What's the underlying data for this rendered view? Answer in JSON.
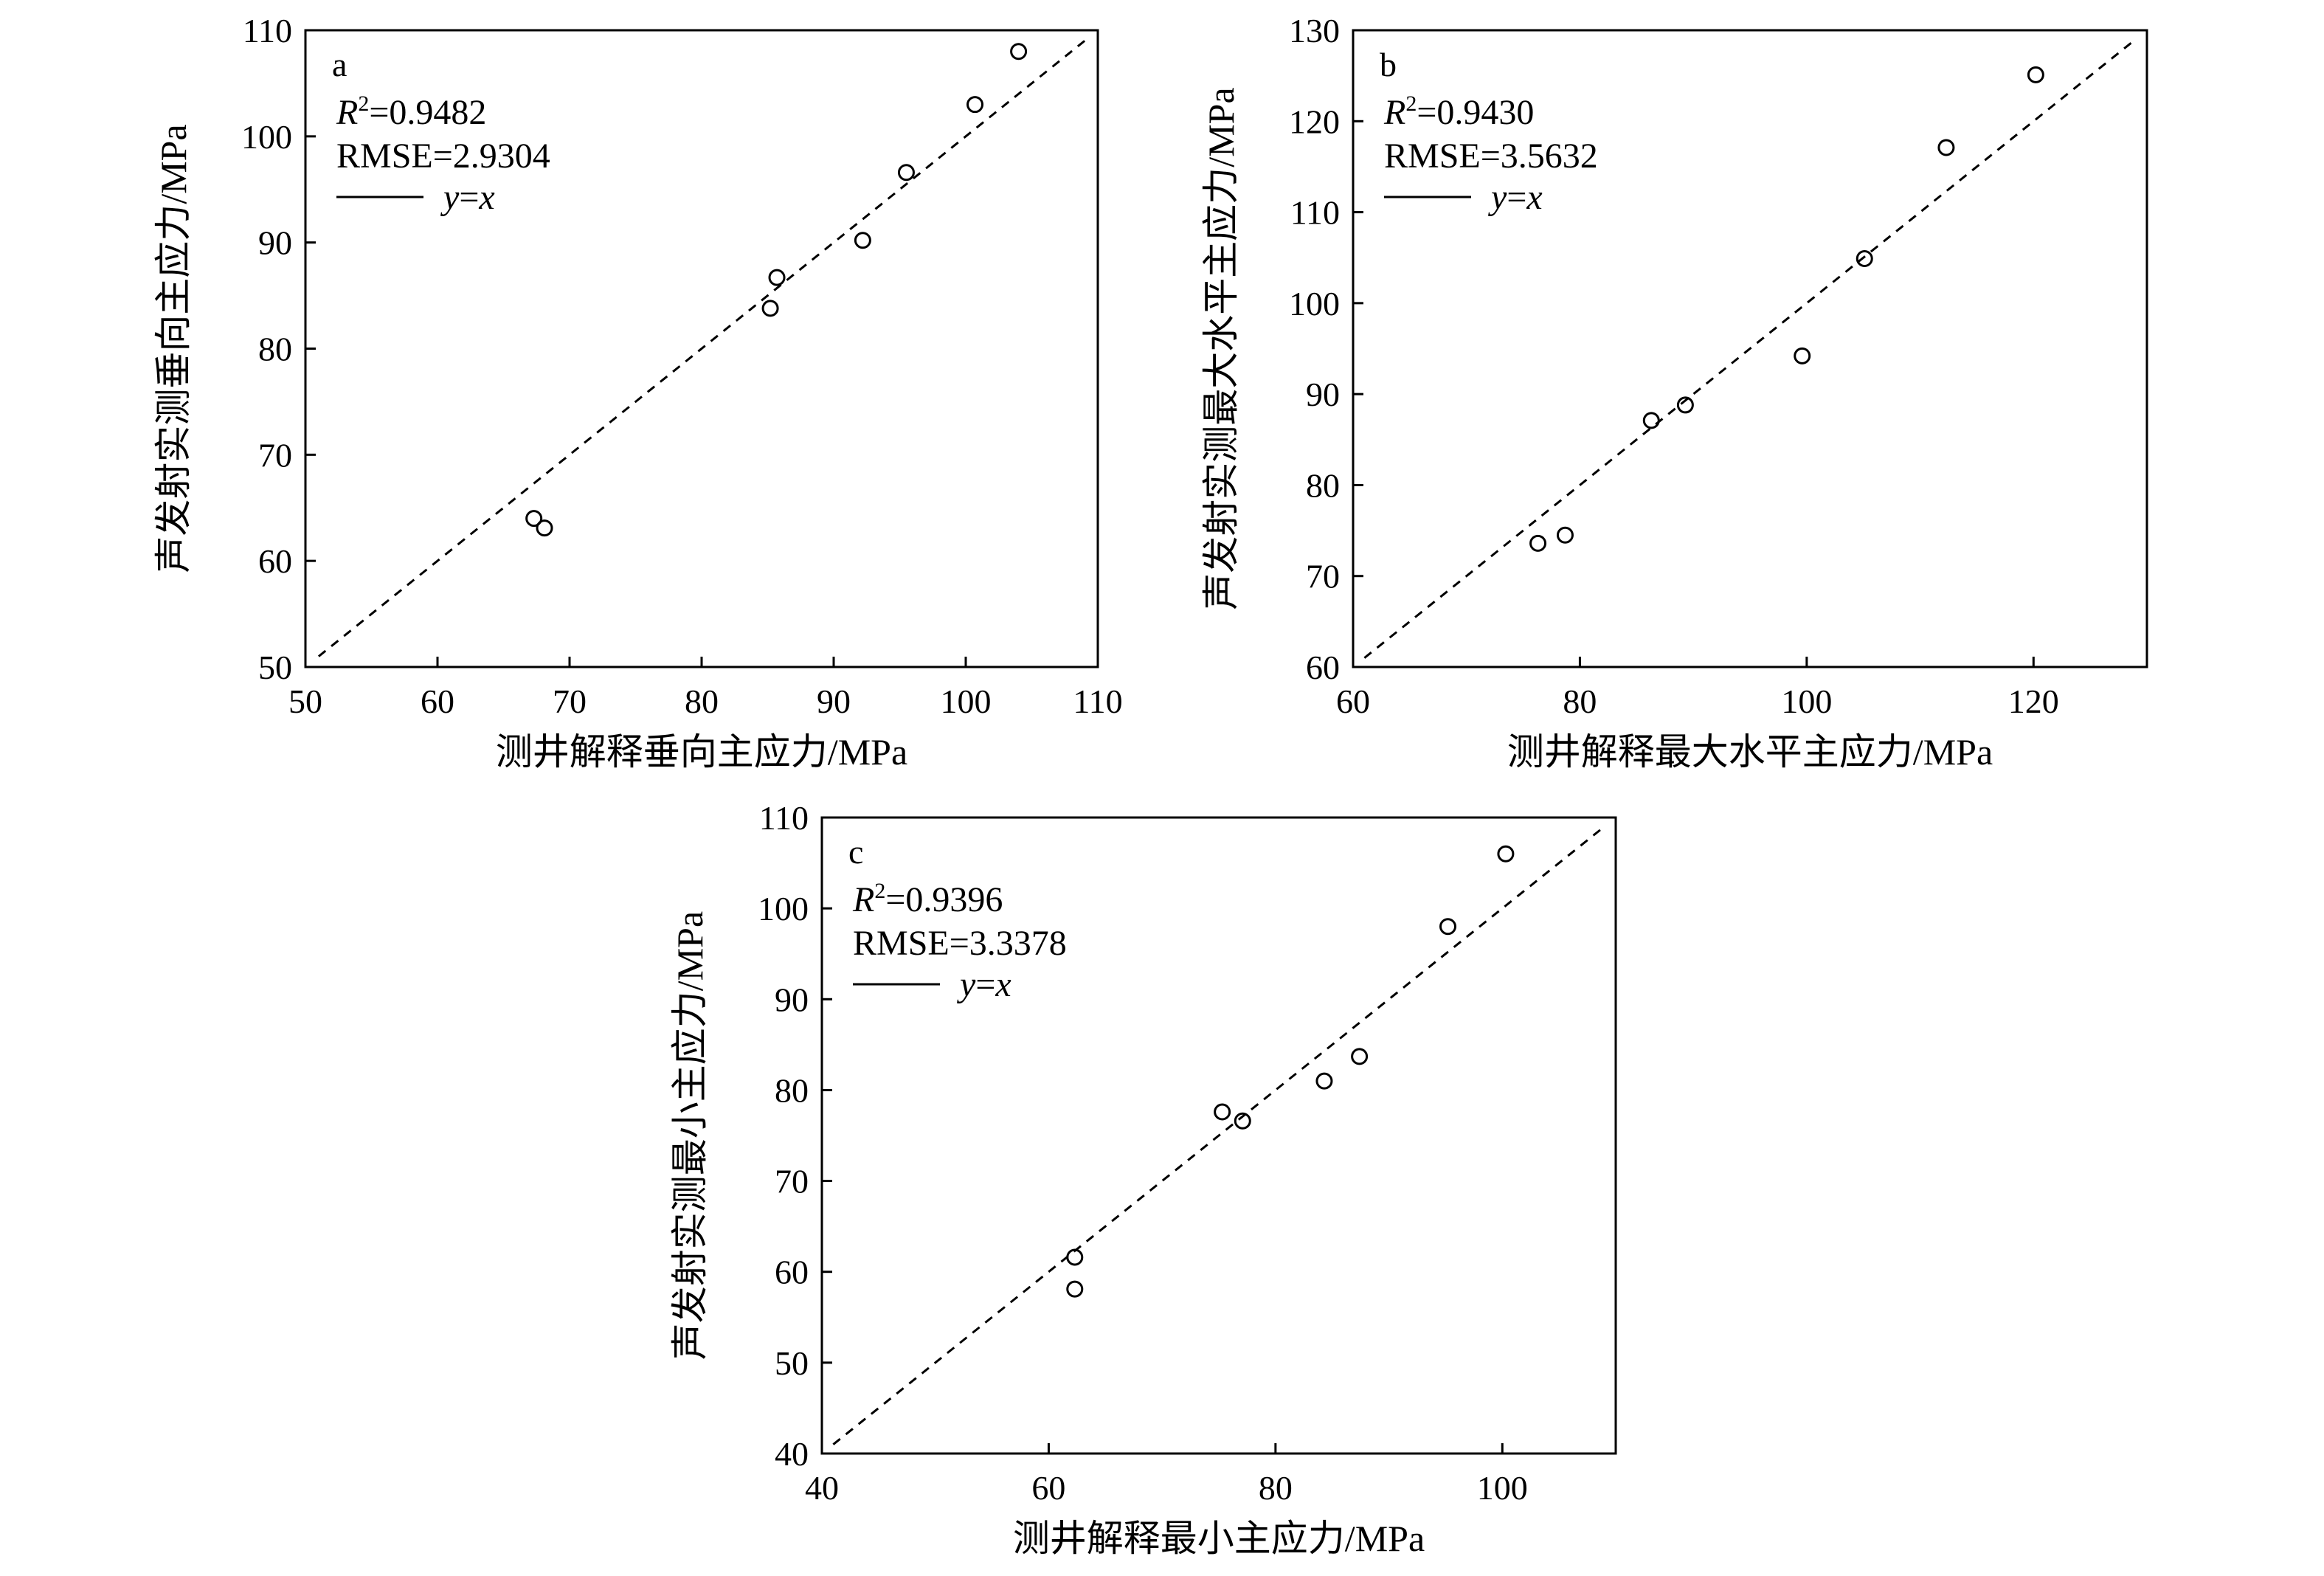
{
  "chart_data": [
    {
      "id": "a",
      "type": "scatter",
      "panel_label": "a",
      "xlabel": "测井解释垂向主应力/MPa",
      "ylabel": "声发射实测垂向主应力/MPa",
      "xlim": [
        50,
        110
      ],
      "ylim": [
        50,
        110
      ],
      "xticks": [
        50,
        60,
        70,
        80,
        90,
        100,
        110
      ],
      "yticks": [
        50,
        60,
        70,
        80,
        90,
        100,
        110
      ],
      "r2_label": "R",
      "r2_sup": "2",
      "r2_value": "=0.9482",
      "rmse": "RMSE=2.9304",
      "legend_y": "y",
      "legend_eq": "=",
      "legend_x": "x",
      "reference_line": "y=x",
      "points": [
        {
          "x": 67.3,
          "y": 64.0
        },
        {
          "x": 68.1,
          "y": 63.1
        },
        {
          "x": 85.2,
          "y": 83.8
        },
        {
          "x": 85.7,
          "y": 86.7
        },
        {
          "x": 92.2,
          "y": 90.2
        },
        {
          "x": 95.5,
          "y": 96.6
        },
        {
          "x": 100.7,
          "y": 103.0
        },
        {
          "x": 104.0,
          "y": 108.0
        }
      ]
    },
    {
      "id": "b",
      "type": "scatter",
      "panel_label": "b",
      "xlabel": "测井解释最大水平主应力/MPa",
      "ylabel": "声发射实测最大水平主应力/MPa",
      "xlim": [
        60,
        130
      ],
      "ylim": [
        60,
        130
      ],
      "xticks": [
        60,
        80,
        100,
        120
      ],
      "yticks": [
        60,
        70,
        80,
        90,
        100,
        110,
        120,
        130
      ],
      "r2_label": "R",
      "r2_sup": "2",
      "r2_value": "=0.9430",
      "rmse": "RMSE=3.5632",
      "legend_y": "y",
      "legend_eq": "=",
      "legend_x": "x",
      "reference_line": "y=x",
      "points": [
        {
          "x": 76.3,
          "y": 73.6
        },
        {
          "x": 78.7,
          "y": 74.5
        },
        {
          "x": 86.3,
          "y": 87.1
        },
        {
          "x": 89.3,
          "y": 88.8
        },
        {
          "x": 99.6,
          "y": 94.2
        },
        {
          "x": 105.1,
          "y": 104.9
        },
        {
          "x": 112.3,
          "y": 117.1
        },
        {
          "x": 120.2,
          "y": 125.1
        }
      ]
    },
    {
      "id": "c",
      "type": "scatter",
      "panel_label": "c",
      "xlabel": "测井解释最小主应力/MPa",
      "ylabel": "声发射实测最小主应力/MPa",
      "xlim": [
        40,
        110
      ],
      "ylim": [
        40,
        110
      ],
      "xticks": [
        40,
        60,
        80,
        100
      ],
      "yticks": [
        40,
        50,
        60,
        70,
        80,
        90,
        100,
        110
      ],
      "r2_label": "R",
      "r2_sup": "2",
      "r2_value": "=0.9396",
      "rmse": "RMSE=3.3378",
      "legend_y": "y",
      "legend_eq": "=",
      "legend_x": "x",
      "reference_line": "y=x",
      "points": [
        {
          "x": 62.3,
          "y": 61.6
        },
        {
          "x": 62.3,
          "y": 58.1
        },
        {
          "x": 75.3,
          "y": 77.6
        },
        {
          "x": 77.1,
          "y": 76.6
        },
        {
          "x": 84.3,
          "y": 81.0
        },
        {
          "x": 87.4,
          "y": 83.7
        },
        {
          "x": 95.2,
          "y": 98.0
        },
        {
          "x": 100.3,
          "y": 106.0
        }
      ]
    }
  ]
}
